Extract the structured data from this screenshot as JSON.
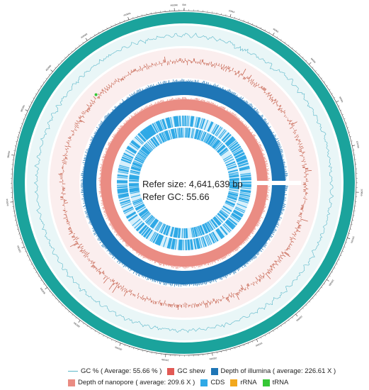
{
  "center": {
    "size_text": "Refer size: 4,641,639 bp",
    "gc_text": "Refer GC: 55.66"
  },
  "legend": {
    "gc_percent": "GC % ( Average: 55.66 % )",
    "gc_skew": "GC shew",
    "depth_illumina": "Depth of illumina ( average: 226.61 X )",
    "depth_nanopore": "Depth of nanopore ( average: 209.6 X )",
    "cds": "CDS",
    "rrna": "rRNA",
    "trna": "tRNA"
  },
  "colors": {
    "genome_ring": "#1ba39c",
    "gc_line": "#5bb7c9",
    "gc_skew": "#c0553f",
    "illumina": "#1f76b6",
    "nanopore": "#ea8c83",
    "cds": "#2fa9e6",
    "rrna": "#f2a81d",
    "trna": "#35c736"
  },
  "genome": {
    "tick_labels": [
      "0kb",
      "200kb",
      "400kb",
      "600kb",
      "800kb",
      "1000kb",
      "1200kb",
      "1400kb",
      "1600kb",
      "1800kb",
      "2000kb",
      "2200kb",
      "2400kb",
      "2600kb",
      "2800kb",
      "3000kb",
      "3200kb",
      "3400kb",
      "3600kb",
      "3800kb",
      "4000kb",
      "4200kb",
      "4400kb",
      "4600kb"
    ]
  }
}
